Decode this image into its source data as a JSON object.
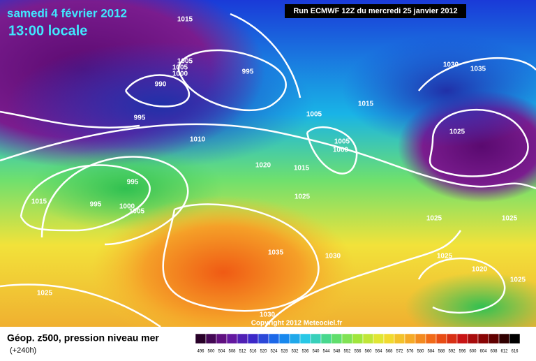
{
  "header": {
    "date": "samedi 4 février 2012",
    "time": "13:00 locale",
    "run": "Run ECMWF 12Z du mercredi 25 janvier 2012"
  },
  "isobars": [
    "1015",
    "1005",
    "1005",
    "1000",
    "995",
    "990",
    "995",
    "1005",
    "1015",
    "1030",
    "1035",
    "1025",
    "1010",
    "1005",
    "1000",
    "1020",
    "1015",
    "1025",
    "995",
    "995",
    "1000",
    "1005",
    "1015",
    "1025",
    "1025",
    "1035",
    "1030",
    "1025",
    "1020",
    "1025",
    "1025",
    "1030"
  ],
  "copyright": "Copyright 2012 Meteociel.fr",
  "legend": {
    "title": "Géop. z500, pression niveau mer",
    "lead": "(+240h)",
    "scale": [
      "496",
      "500",
      "504",
      "508",
      "512",
      "516",
      "520",
      "524",
      "528",
      "532",
      "536",
      "540",
      "544",
      "548",
      "552",
      "556",
      "560",
      "564",
      "568",
      "572",
      "576",
      "580",
      "584",
      "588",
      "592",
      "596",
      "600",
      "604",
      "608",
      "612",
      "616"
    ]
  }
}
